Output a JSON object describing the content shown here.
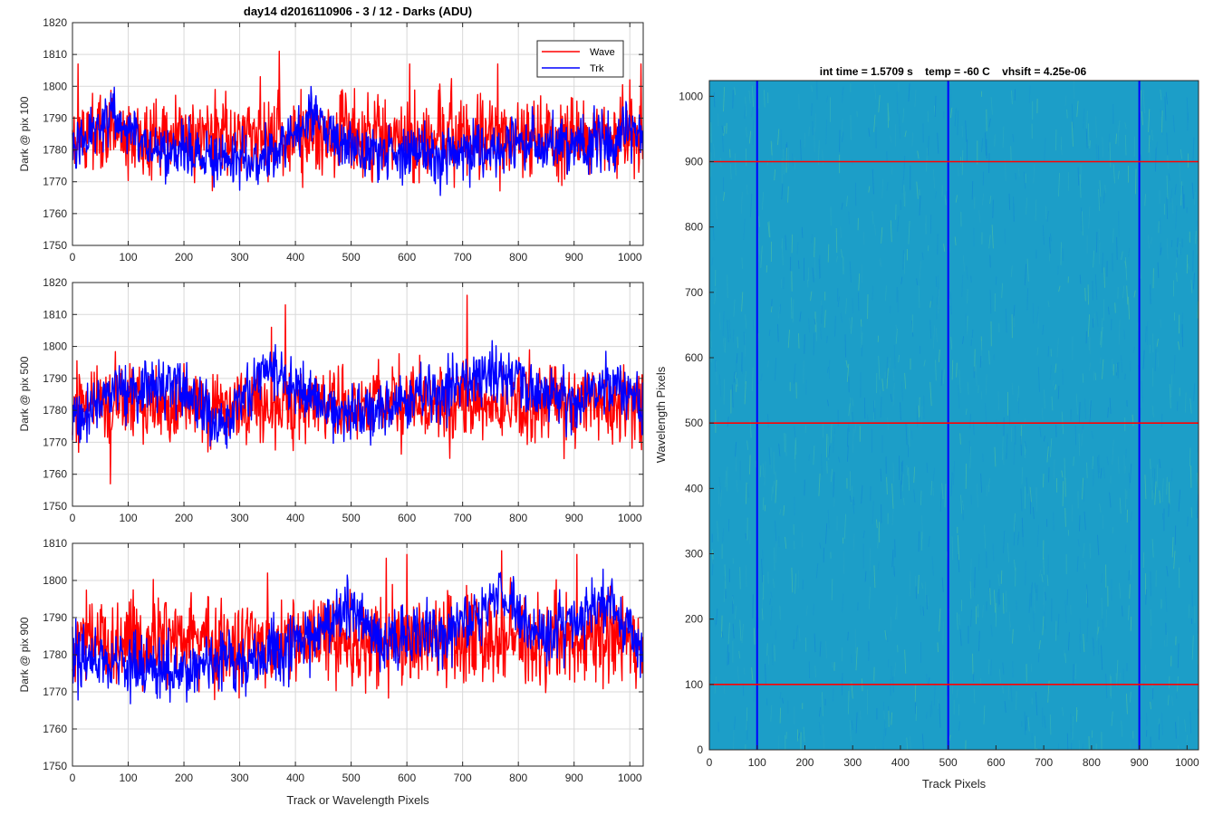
{
  "figure": {
    "title": "day14 d2016110906 - 3 / 12 - Darks (ADU)",
    "shared_xlabel": "Track or Wavelength Pixels"
  },
  "legend": {
    "entries": [
      {
        "label": "Wave",
        "color": "#ff0000"
      },
      {
        "label": "Trk",
        "color": "#0000ff"
      }
    ]
  },
  "colors": {
    "wave": "#ff0000",
    "trk": "#0000ff",
    "grid": "#d9d9d9",
    "axis": "#262626"
  },
  "chart_data": [
    {
      "type": "line",
      "ylabel": "Dark @ pix 100",
      "xlim": [
        0,
        1024
      ],
      "ylim": [
        1750,
        1820
      ],
      "xticks": [
        0,
        100,
        200,
        300,
        400,
        500,
        600,
        700,
        800,
        900,
        1000
      ],
      "yticks": [
        1750,
        1760,
        1770,
        1780,
        1790,
        1800,
        1810,
        1820
      ],
      "grid": true,
      "legend_position": "top-right",
      "series": [
        {
          "name": "Wave",
          "color": "#ff0000",
          "mean": 1784,
          "noise": 7,
          "seed": 11,
          "spikes": [
            [
              10,
              1807
            ],
            [
              60,
              1780
            ],
            [
              150,
              1796
            ],
            [
              256,
              1799
            ],
            [
              337,
              1803
            ],
            [
              371,
              1811
            ],
            [
              410,
              1799
            ],
            [
              530,
              1798
            ],
            [
              605,
              1807
            ],
            [
              763,
              1807
            ],
            [
              840,
              1797
            ],
            [
              1000,
              1802
            ],
            [
              1020,
              1807
            ]
          ]
        },
        {
          "name": "Trk",
          "color": "#0000ff",
          "mean": 1780,
          "noise": 5,
          "seed": 23,
          "trend": [
            [
              0,
              1782
            ],
            [
              70,
              1791
            ],
            [
              130,
              1781
            ],
            [
              280,
              1777
            ],
            [
              350,
              1778
            ],
            [
              430,
              1790
            ],
            [
              520,
              1779
            ],
            [
              700,
              1780
            ],
            [
              850,
              1782
            ],
            [
              1024,
              1784
            ]
          ]
        }
      ]
    },
    {
      "type": "line",
      "ylabel": "Dark @ pix 500",
      "xlim": [
        0,
        1024
      ],
      "ylim": [
        1750,
        1820
      ],
      "xticks": [
        0,
        100,
        200,
        300,
        400,
        500,
        600,
        700,
        800,
        900,
        1000
      ],
      "yticks": [
        1750,
        1760,
        1770,
        1780,
        1790,
        1800,
        1810,
        1820
      ],
      "grid": true,
      "series": [
        {
          "name": "Wave",
          "color": "#ff0000",
          "mean": 1782,
          "noise": 7,
          "seed": 37,
          "spikes": [
            [
              68,
              1757
            ],
            [
              357,
              1806
            ],
            [
              382,
              1813
            ],
            [
              708,
              1816
            ],
            [
              150,
              1794
            ]
          ]
        },
        {
          "name": "Trk",
          "color": "#0000ff",
          "mean": 1781,
          "noise": 5,
          "seed": 41,
          "trend": [
            [
              0,
              1776
            ],
            [
              60,
              1785
            ],
            [
              180,
              1788
            ],
            [
              270,
              1775
            ],
            [
              350,
              1793
            ],
            [
              420,
              1786
            ],
            [
              470,
              1778
            ],
            [
              600,
              1783
            ],
            [
              760,
              1792
            ],
            [
              900,
              1782
            ],
            [
              960,
              1789
            ],
            [
              1024,
              1780
            ]
          ]
        }
      ]
    },
    {
      "type": "line",
      "ylabel": "Dark @ pix 900",
      "xlim": [
        0,
        1024
      ],
      "ylim": [
        1750,
        1810
      ],
      "xticks": [
        0,
        100,
        200,
        300,
        400,
        500,
        600,
        700,
        800,
        900,
        1000
      ],
      "yticks": [
        1750,
        1760,
        1770,
        1780,
        1790,
        1800,
        1810
      ],
      "grid": true,
      "series": [
        {
          "name": "Wave",
          "color": "#ff0000",
          "mean": 1784,
          "noise": 7,
          "seed": 53,
          "spikes": [
            [
              350,
              1802
            ],
            [
              563,
              1806
            ],
            [
              600,
              1807
            ],
            [
              770,
              1808
            ],
            [
              905,
              1807
            ]
          ]
        },
        {
          "name": "Trk",
          "color": "#0000ff",
          "mean": 1780,
          "noise": 5,
          "seed": 59,
          "trend": [
            [
              0,
              1781
            ],
            [
              100,
              1778
            ],
            [
              200,
              1776
            ],
            [
              380,
              1781
            ],
            [
              490,
              1793
            ],
            [
              560,
              1784
            ],
            [
              700,
              1787
            ],
            [
              770,
              1796
            ],
            [
              850,
              1784
            ],
            [
              960,
              1794
            ],
            [
              1024,
              1781
            ]
          ]
        }
      ]
    },
    {
      "type": "heatmap",
      "title": "int time = 1.5709 s    temp = -60 C    vhsift = 4.25e-06",
      "xlabel": "Track Pixels",
      "ylabel": "Wavelength Pixels",
      "xlim": [
        0,
        1024
      ],
      "ylim": [
        0,
        1024
      ],
      "xticks": [
        0,
        100,
        200,
        300,
        400,
        500,
        600,
        700,
        800,
        900,
        1000
      ],
      "yticks": [
        0,
        100,
        200,
        300,
        400,
        500,
        600,
        700,
        800,
        900,
        1000
      ],
      "base_color": "#1c9ec8",
      "vertical_lines": {
        "color": "#0000ff",
        "x": [
          100,
          500,
          900
        ]
      },
      "horizontal_lines": {
        "color": "#ff0000",
        "y": [
          100,
          500,
          900
        ]
      }
    }
  ]
}
